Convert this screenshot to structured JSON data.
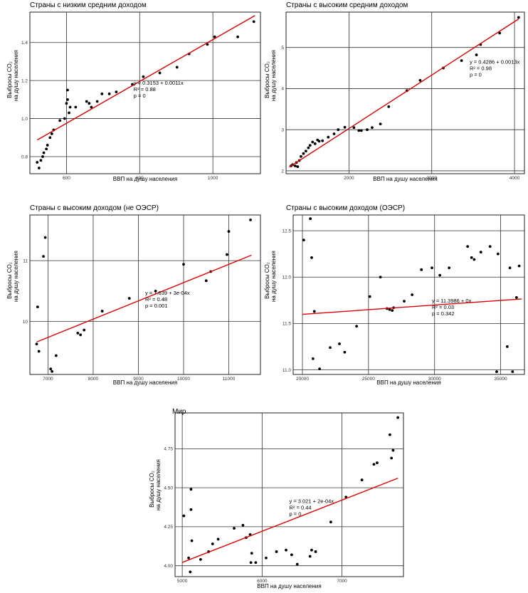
{
  "chart_data": [
    {
      "type": "scatter",
      "title": "Страны с низким средним доходом",
      "xlabel": "ВВП на душу населения",
      "ylabel_line1": "Выбросы CO₂",
      "ylabel_line2": "на душу населения",
      "xlim": [
        500,
        1130
      ],
      "ylim": [
        0.71,
        1.56
      ],
      "xticks": [
        600,
        800,
        1000
      ],
      "yticks": [
        0.8,
        1.0,
        1.2,
        1.4
      ],
      "ytick_labels": [
        "0.8",
        "1.0",
        "1.2",
        "1.4"
      ],
      "grid": true,
      "fit": {
        "intercept": 0.3153,
        "slope": 0.0011,
        "x_range": [
          520,
          1115
        ]
      },
      "annotation": {
        "eq": "y = 0.3153 + 0.0011x",
        "r2": "R² = 0.88",
        "p": "p = 0"
      },
      "points": [
        [
          520,
          0.77
        ],
        [
          525,
          0.74
        ],
        [
          530,
          0.78
        ],
        [
          535,
          0.8
        ],
        [
          538,
          0.82
        ],
        [
          545,
          0.84
        ],
        [
          548,
          0.86
        ],
        [
          555,
          0.9
        ],
        [
          560,
          0.92
        ],
        [
          565,
          0.94
        ],
        [
          582,
          0.99
        ],
        [
          595,
          1.0
        ],
        [
          600,
          1.08
        ],
        [
          603,
          1.1
        ],
        [
          603,
          1.15
        ],
        [
          607,
          1.03
        ],
        [
          610,
          1.06
        ],
        [
          625,
          1.06
        ],
        [
          655,
          1.09
        ],
        [
          662,
          1.08
        ],
        [
          668,
          1.06
        ],
        [
          684,
          1.09
        ],
        [
          697,
          1.13
        ],
        [
          717,
          1.13
        ],
        [
          736,
          1.14
        ],
        [
          780,
          1.18
        ],
        [
          810,
          1.22
        ],
        [
          855,
          1.24
        ],
        [
          902,
          1.27
        ],
        [
          935,
          1.34
        ],
        [
          985,
          1.39
        ],
        [
          1005,
          1.43
        ],
        [
          1068,
          1.43
        ],
        [
          1112,
          1.51
        ]
      ]
    },
    {
      "type": "scatter",
      "title": "Страны с высоким средним доходом",
      "xlabel": "ВВП на душу населения",
      "ylabel_line1": "Выбросы CO₂",
      "ylabel_line2": "на душу населения",
      "xlim": [
        1240,
        4120
      ],
      "ylim": [
        1.93,
        5.86
      ],
      "xticks": [
        2000,
        3000,
        4000
      ],
      "yticks": [
        2,
        3,
        4,
        5
      ],
      "ytick_labels": [
        "2",
        "3",
        "4",
        "5"
      ],
      "grid": true,
      "fit": {
        "intercept": 0.4286,
        "slope": 0.0013,
        "x_range": [
          1280,
          4050
        ]
      },
      "annotation": {
        "eq": "y = 0.4286 + 0.0013x",
        "r2": "R² = 0.98",
        "p": "p = 0"
      },
      "points": [
        [
          1300,
          2.12
        ],
        [
          1320,
          2.15
        ],
        [
          1350,
          2.12
        ],
        [
          1365,
          2.2
        ],
        [
          1380,
          2.1
        ],
        [
          1400,
          2.25
        ],
        [
          1420,
          2.35
        ],
        [
          1450,
          2.42
        ],
        [
          1480,
          2.48
        ],
        [
          1510,
          2.56
        ],
        [
          1530,
          2.62
        ],
        [
          1560,
          2.7
        ],
        [
          1590,
          2.66
        ],
        [
          1620,
          2.75
        ],
        [
          1640,
          2.72
        ],
        [
          1680,
          2.73
        ],
        [
          1750,
          2.82
        ],
        [
          1820,
          2.9
        ],
        [
          1870,
          3.0
        ],
        [
          1950,
          3.06
        ],
        [
          2060,
          3.05
        ],
        [
          2120,
          2.98
        ],
        [
          2150,
          2.98
        ],
        [
          2220,
          3.0
        ],
        [
          2280,
          3.05
        ],
        [
          2380,
          3.14
        ],
        [
          2480,
          3.56
        ],
        [
          2700,
          3.95
        ],
        [
          2860,
          4.2
        ],
        [
          3140,
          4.5
        ],
        [
          3360,
          4.68
        ],
        [
          3540,
          4.82
        ],
        [
          3590,
          5.07
        ],
        [
          3820,
          5.35
        ],
        [
          4050,
          5.73
        ]
      ]
    },
    {
      "type": "scatter",
      "title": "Страны с высоким доходом (не ОЭСР)",
      "xlabel": "ВВП на душу населения",
      "ylabel_line1": "Выбросы CO₂",
      "ylabel_line2": "на душу населения",
      "xlim": [
        6600,
        11700
      ],
      "ylim": [
        9.13,
        11.75
      ],
      "xticks": [
        7000,
        8000,
        9000,
        10000,
        11000
      ],
      "yticks": [
        10,
        11
      ],
      "ytick_labels": [
        "10",
        "11"
      ],
      "grid": true,
      "fit": {
        "intercept": 7.639,
        "slope": 0.0003,
        "x_range": [
          6750,
          11500
        ]
      },
      "annotation": {
        "eq": "y = 7.639 + 3e-04x",
        "r2": "R² = 0.48",
        "p": "p = 0.001"
      },
      "points": [
        [
          6750,
          9.63
        ],
        [
          6770,
          10.24
        ],
        [
          6800,
          9.51
        ],
        [
          6900,
          11.07
        ],
        [
          6940,
          11.38
        ],
        [
          7060,
          9.22
        ],
        [
          7090,
          9.18
        ],
        [
          7180,
          9.44
        ],
        [
          7660,
          9.81
        ],
        [
          7720,
          9.78
        ],
        [
          7800,
          9.86
        ],
        [
          8200,
          10.17
        ],
        [
          8800,
          10.38
        ],
        [
          9380,
          10.5
        ],
        [
          10000,
          10.94
        ],
        [
          10500,
          10.67
        ],
        [
          10600,
          10.82
        ],
        [
          10960,
          11.1
        ],
        [
          11000,
          11.48
        ],
        [
          11480,
          11.67
        ]
      ]
    },
    {
      "type": "scatter",
      "title": "Страны с высоким доходом (ОЭСР)",
      "xlabel": "ВВП на душу населения",
      "ylabel_line1": "Выбросы CO₂",
      "ylabel_line2": "на душу населения",
      "xlim": [
        19300,
        36800
      ],
      "ylim": [
        10.95,
        12.67
      ],
      "xticks": [
        20000,
        25000,
        30000,
        35000
      ],
      "yticks": [
        11.0,
        11.5,
        12.0,
        12.5
      ],
      "ytick_labels": [
        "11.0",
        "11.5",
        "12.0",
        "12.5"
      ],
      "grid": true,
      "fit": {
        "intercept": 11.3986,
        "slope": 1e-05,
        "x_range": [
          20000,
          36600
        ]
      },
      "annotation": {
        "eq": "y = 11.3986 + 0x",
        "r2": "R² = 0.03",
        "p": "p = 0.342"
      },
      "points": [
        [
          20100,
          12.4
        ],
        [
          20600,
          12.63
        ],
        [
          20700,
          12.21
        ],
        [
          20800,
          11.12
        ],
        [
          20900,
          11.63
        ],
        [
          21300,
          11.01
        ],
        [
          22100,
          11.24
        ],
        [
          22800,
          11.28
        ],
        [
          23200,
          11.19
        ],
        [
          24100,
          11.47
        ],
        [
          25100,
          11.79
        ],
        [
          25900,
          12.0
        ],
        [
          26400,
          11.66
        ],
        [
          26600,
          11.65
        ],
        [
          26800,
          11.64
        ],
        [
          26900,
          11.67
        ],
        [
          27700,
          11.74
        ],
        [
          28300,
          11.81
        ],
        [
          29000,
          12.08
        ],
        [
          29800,
          12.1
        ],
        [
          30400,
          12.02
        ],
        [
          31100,
          12.1
        ],
        [
          32500,
          12.33
        ],
        [
          32800,
          12.21
        ],
        [
          33000,
          12.19
        ],
        [
          33500,
          12.27
        ],
        [
          34200,
          12.33
        ],
        [
          34700,
          10.98
        ],
        [
          34800,
          12.25
        ],
        [
          35500,
          11.25
        ],
        [
          35700,
          12.1
        ],
        [
          35900,
          10.98
        ],
        [
          36200,
          11.78
        ],
        [
          36400,
          12.12
        ]
      ]
    },
    {
      "type": "scatter",
      "title": "Мир",
      "xlabel": "ВВП на душу населения",
      "ylabel_line1": "Выбросы CO₂",
      "ylabel_line2": "на душу населения",
      "xlim": [
        4910,
        7770
      ],
      "ylim": [
        3.93,
        4.98
      ],
      "xticks": [
        5000,
        6000,
        7000
      ],
      "yticks": [
        4.0,
        4.25,
        4.5,
        4.75
      ],
      "ytick_labels": [
        "4.00",
        "4.25",
        "4.50",
        "4.75"
      ],
      "grid": true,
      "fit": {
        "intercept": 3.021,
        "slope": 0.0002,
        "x_range": [
          5000,
          7700
        ]
      },
      "annotation": {
        "eq": "y = 3.021 + 2e-04x",
        "r2": "R² = 0.44",
        "p": "p = 0"
      },
      "points": [
        [
          5020,
          4.32
        ],
        [
          5080,
          4.05
        ],
        [
          5100,
          3.96
        ],
        [
          5110,
          4.49
        ],
        [
          5110,
          4.36
        ],
        [
          5120,
          4.16
        ],
        [
          5230,
          4.04
        ],
        [
          5330,
          4.09
        ],
        [
          5380,
          4.14
        ],
        [
          5450,
          4.17
        ],
        [
          5650,
          4.24
        ],
        [
          5760,
          4.26
        ],
        [
          5800,
          4.18
        ],
        [
          5850,
          4.2
        ],
        [
          5860,
          4.02
        ],
        [
          5870,
          4.08
        ],
        [
          5920,
          4.02
        ],
        [
          6050,
          4.05
        ],
        [
          6180,
          4.09
        ],
        [
          6300,
          4.1
        ],
        [
          6370,
          4.07
        ],
        [
          6440,
          4.01
        ],
        [
          6600,
          4.06
        ],
        [
          6620,
          4.1
        ],
        [
          6670,
          4.09
        ],
        [
          6860,
          4.28
        ],
        [
          7050,
          4.44
        ],
        [
          7250,
          4.55
        ],
        [
          7400,
          4.65
        ],
        [
          7440,
          4.66
        ],
        [
          7600,
          4.84
        ],
        [
          7620,
          4.69
        ],
        [
          7640,
          4.74
        ],
        [
          7700,
          4.95
        ]
      ]
    }
  ]
}
